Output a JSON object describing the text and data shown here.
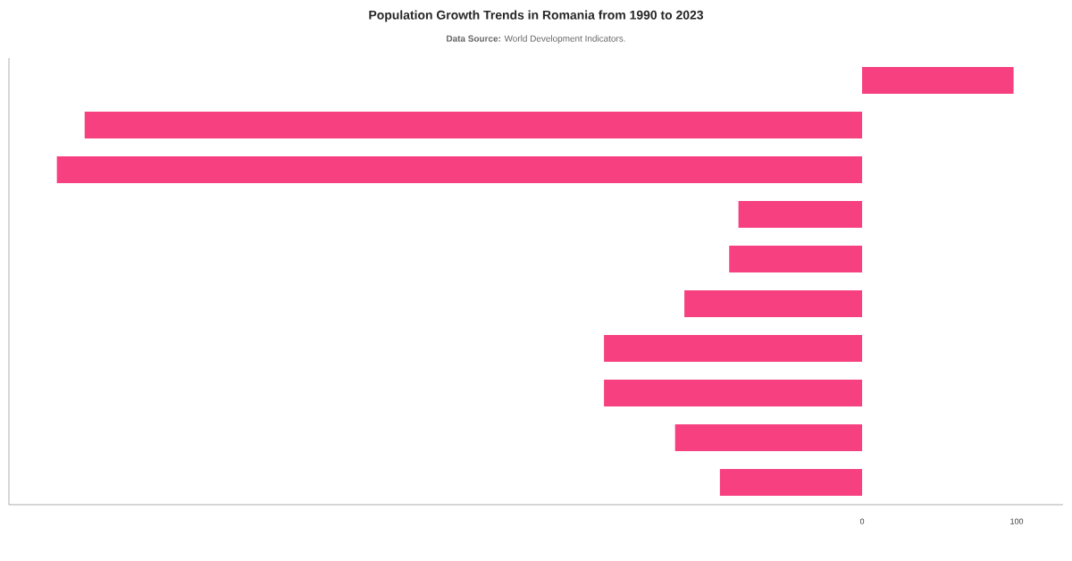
{
  "chart_data": {
    "type": "bar",
    "orientation": "horizontal",
    "title": "Population Growth Trends in Romania from 1990 to 2023",
    "subtitle": "**Data Source:** World Development Indicators.",
    "categories": [
      null,
      null,
      null,
      null,
      null,
      null,
      null,
      null,
      null,
      null
    ],
    "values": [
      98,
      -503,
      -521,
      -80,
      -86,
      -115,
      -167,
      -167,
      -121,
      -92
    ],
    "xlim": [
      -552,
      130
    ],
    "xticks": [
      0,
      100
    ],
    "color": "#f7407f"
  }
}
